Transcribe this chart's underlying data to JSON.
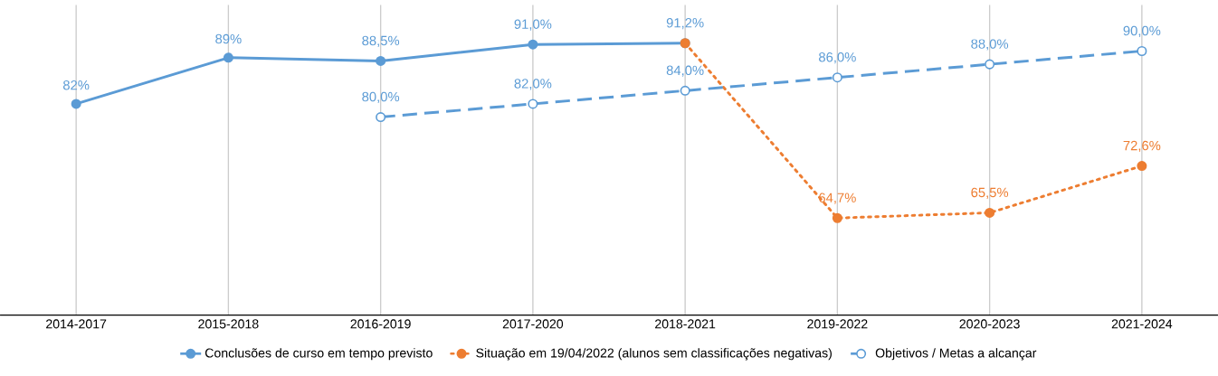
{
  "chart_data": {
    "type": "line",
    "categories": [
      "2014-2017",
      "2015-2018",
      "2016-2019",
      "2017-2020",
      "2018-2021",
      "2019-2022",
      "2020-2023",
      "2021-2024"
    ],
    "ylim": [
      50,
      97
    ],
    "tick_labels": "x",
    "grid": "x",
    "legend": "bottom",
    "marker": "circle",
    "series": [
      {
        "name": "Conclusões de curso em tempo previsto",
        "color": "#5b9bd5",
        "line_style": "solid",
        "values": [
          82,
          89,
          88.5,
          91.0,
          91.2,
          null,
          null,
          null
        ],
        "value_labels": [
          "82%",
          "89%",
          "88,5%",
          "91,0%",
          "91,2%",
          null,
          null,
          null
        ]
      },
      {
        "name": "Situação em 19/04/2022 (alunos sem classificações negativas)",
        "color": "#ed7d31",
        "line_style": "dotted",
        "values": [
          null,
          null,
          null,
          null,
          91.2,
          64.7,
          65.5,
          72.6
        ],
        "value_labels": [
          null,
          null,
          null,
          null,
          null,
          "64,7%",
          "65,5%",
          "72,6%"
        ]
      },
      {
        "name": "Objetivos / Metas a alcançar",
        "color": "#5b9bd5",
        "line_style": "dashed",
        "values": [
          null,
          null,
          80.0,
          82.0,
          84.0,
          86.0,
          88.0,
          90.0
        ],
        "value_labels": [
          null,
          null,
          "80,0%",
          "82,0%",
          "84,0%",
          "86,0%",
          "88,0%",
          "90,0%"
        ]
      }
    ]
  }
}
